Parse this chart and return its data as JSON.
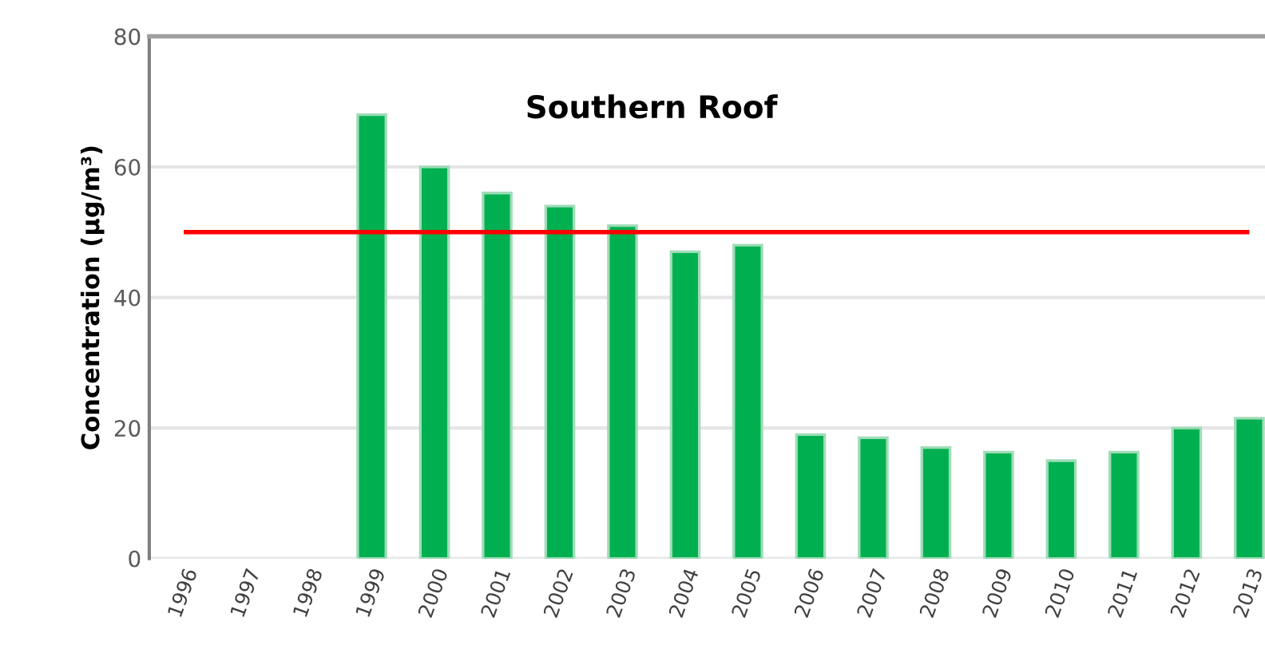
{
  "chart_data": {
    "type": "bar",
    "title": "Southern Roof",
    "ylabel": "Concentration (µg/m³)",
    "categories": [
      "1996",
      "1997",
      "1998",
      "1999",
      "2000",
      "2001",
      "2002",
      "2003",
      "2004",
      "2005",
      "2006",
      "2007",
      "2008",
      "2009",
      "2010",
      "2011",
      "2012",
      "2013"
    ],
    "values": [
      null,
      null,
      null,
      68,
      60,
      56,
      54,
      51,
      47,
      48,
      19,
      18.5,
      17,
      16.3,
      15,
      16.3,
      20,
      21.5
    ],
    "color": "#00b050",
    "ylim": [
      0,
      80
    ],
    "yticks": [
      0,
      20,
      40,
      60,
      80
    ],
    "grid": "y",
    "ref_lines": [
      {
        "axis": "y",
        "value": 50,
        "color": "#ff0000"
      }
    ]
  }
}
